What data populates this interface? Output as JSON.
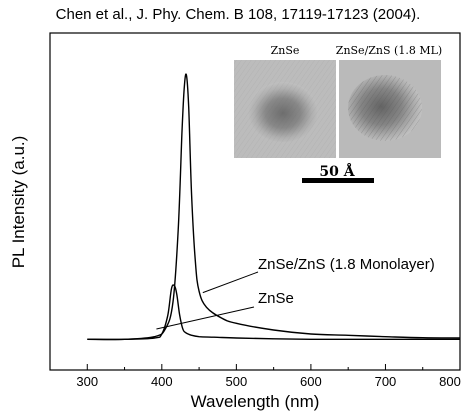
{
  "citation": "Chen et al., J. Phy. Chem. B 108, 17119-17123 (2004).",
  "chart_data": {
    "type": "line",
    "title": "",
    "xlabel": "Wavelength (nm)",
    "ylabel": "PL Intensity (a.u.)",
    "xlim": [
      250,
      800
    ],
    "ylim": [
      0,
      1.1
    ],
    "x_ticks": [
      "300",
      "400",
      "500",
      "600",
      "700",
      "800"
    ],
    "y_ticks": [],
    "grid": false,
    "series": [
      {
        "name": "ZnSe/ZnS (1.8 Monolayer)",
        "x": [
          300,
          350,
          390,
          405,
          415,
          422,
          427,
          430,
          433,
          436,
          440,
          445,
          450,
          460,
          480,
          500,
          550,
          600,
          650,
          700,
          750,
          800
        ],
        "y": [
          0.01,
          0.01,
          0.02,
          0.05,
          0.15,
          0.42,
          0.78,
          0.95,
          1.0,
          0.88,
          0.55,
          0.3,
          0.19,
          0.13,
          0.09,
          0.07,
          0.045,
          0.03,
          0.025,
          0.02,
          0.016,
          0.015
        ]
      },
      {
        "name": "ZnSe",
        "x": [
          300,
          350,
          390,
          400,
          408,
          413,
          417,
          420,
          424,
          428,
          432,
          440,
          450,
          470,
          500,
          550,
          600,
          650,
          700,
          750,
          800
        ],
        "y": [
          0.01,
          0.01,
          0.015,
          0.03,
          0.1,
          0.2,
          0.21,
          0.18,
          0.1,
          0.05,
          0.035,
          0.025,
          0.02,
          0.018,
          0.015,
          0.012,
          0.01,
          0.01,
          0.01,
          0.01,
          0.01
        ]
      }
    ],
    "annotations": [
      {
        "text": "ZnSe/ZnS (1.8 Monolayer)",
        "points_to": {
          "x": 455,
          "y": 0.14
        }
      },
      {
        "text": "ZnSe",
        "points_to": {
          "x": 433,
          "y": 0.03
        }
      }
    ],
    "inset": {
      "panels": [
        "ZnSe",
        "ZnSe/ZnS (1.8 ML)"
      ],
      "scale_bar": "50 Å"
    }
  }
}
